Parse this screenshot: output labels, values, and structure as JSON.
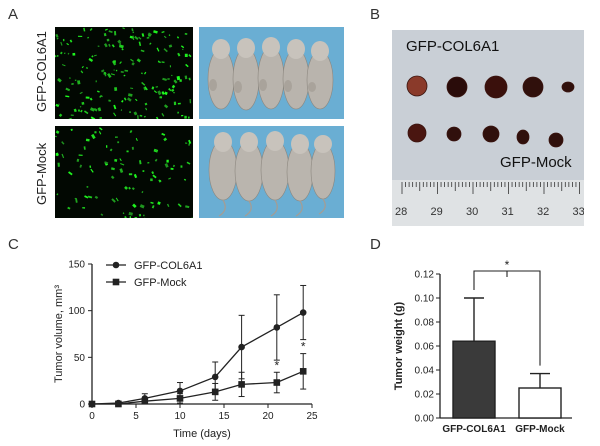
{
  "panels": {
    "a": {
      "letter": "A",
      "row1_label": "GFP-COL6A1",
      "row2_label": "GFP-Mock"
    },
    "b": {
      "letter": "B",
      "top_label": "GFP-COL6A1",
      "bottom_label": "GFP-Mock",
      "ruler_ticks": [
        "28",
        "29",
        "30",
        "31",
        "32",
        "33"
      ]
    },
    "c": {
      "letter": "C"
    },
    "d": {
      "letter": "D"
    }
  },
  "chart_data": [
    {
      "type": "line",
      "panel": "C",
      "xlabel": "Time (days)",
      "ylabel": "Tumor volume, mm³",
      "xlim": [
        0,
        25
      ],
      "ylim": [
        0,
        150
      ],
      "xticks": [
        0,
        5,
        10,
        15,
        20,
        25
      ],
      "yticks": [
        0,
        50,
        100,
        150
      ],
      "legend_position": "top-left",
      "series": [
        {
          "name": "GFP-COL6A1",
          "marker": "circle",
          "x": [
            0,
            3,
            6,
            10,
            14,
            17,
            21,
            24
          ],
          "y": [
            0,
            1,
            6,
            14,
            29,
            61,
            82,
            98
          ],
          "err": [
            0,
            2,
            5,
            9,
            16,
            34,
            35,
            29
          ]
        },
        {
          "name": "GFP-Mock",
          "marker": "square",
          "x": [
            0,
            3,
            6,
            10,
            14,
            17,
            21,
            24
          ],
          "y": [
            0,
            0,
            3,
            6,
            13,
            21,
            23,
            35
          ],
          "err": [
            0,
            1,
            3,
            5,
            9,
            13,
            11,
            19
          ]
        }
      ],
      "annotations": [
        {
          "x": 21,
          "text": "*"
        },
        {
          "x": 24,
          "text": "*"
        }
      ]
    },
    {
      "type": "bar",
      "panel": "D",
      "ylabel": "Tumor weight (g)",
      "categories": [
        "GFP-COL6A1",
        "GFP-Mock"
      ],
      "values": [
        0.064,
        0.025
      ],
      "err": [
        0.036,
        0.012
      ],
      "colors": [
        "#3a3a3a",
        "#ffffff"
      ],
      "ylim": [
        0,
        0.12
      ],
      "yticks": [
        "0.00",
        "0.02",
        "0.04",
        "0.06",
        "0.08",
        "0.10",
        "0.12"
      ],
      "significance": "*"
    }
  ]
}
